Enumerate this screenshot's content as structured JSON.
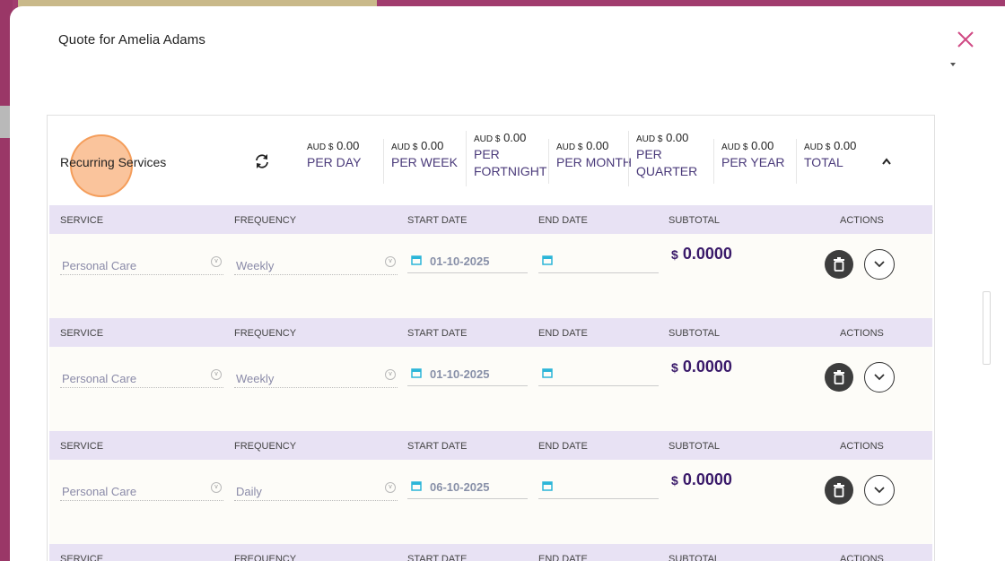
{
  "modal": {
    "title": "Quote for Amelia Adams"
  },
  "section": {
    "title": "Recurring Services",
    "totals": [
      {
        "currency": "AUD $",
        "amount": "0.00",
        "label": "PER DAY"
      },
      {
        "currency": "AUD $",
        "amount": "0.00",
        "label": "PER WEEK"
      },
      {
        "currency": "AUD $",
        "amount": "0.00",
        "label": "PER FORTNIGHT"
      },
      {
        "currency": "AUD $",
        "amount": "0.00",
        "label": "PER MONTH"
      },
      {
        "currency": "AUD $",
        "amount": "0.00",
        "label": "PER QUARTER"
      },
      {
        "currency": "AUD $",
        "amount": "0.00",
        "label": "PER YEAR"
      },
      {
        "currency": "AUD $",
        "amount": "0.00",
        "label": "TOTAL"
      }
    ]
  },
  "columns": {
    "service": "SERVICE",
    "frequency": "FREQUENCY",
    "start_date": "START DATE",
    "end_date": "END DATE",
    "subtotal": "SUBTOTAL",
    "actions": "ACTIONS"
  },
  "rows": [
    {
      "service": "Personal Care",
      "frequency": "Weekly",
      "start_date": "01-10-2025",
      "end_date": "",
      "currency": "$",
      "subtotal": "0.0000"
    },
    {
      "service": "Personal Care",
      "frequency": "Weekly",
      "start_date": "01-10-2025",
      "end_date": "",
      "currency": "$",
      "subtotal": "0.0000"
    },
    {
      "service": "Personal Care",
      "frequency": "Daily",
      "start_date": "06-10-2025",
      "end_date": "",
      "currency": "$",
      "subtotal": "0.0000"
    }
  ],
  "colors": {
    "accent": "#4a3a7a",
    "header_bg": "#e8e2f4",
    "close": "#d04a84"
  }
}
